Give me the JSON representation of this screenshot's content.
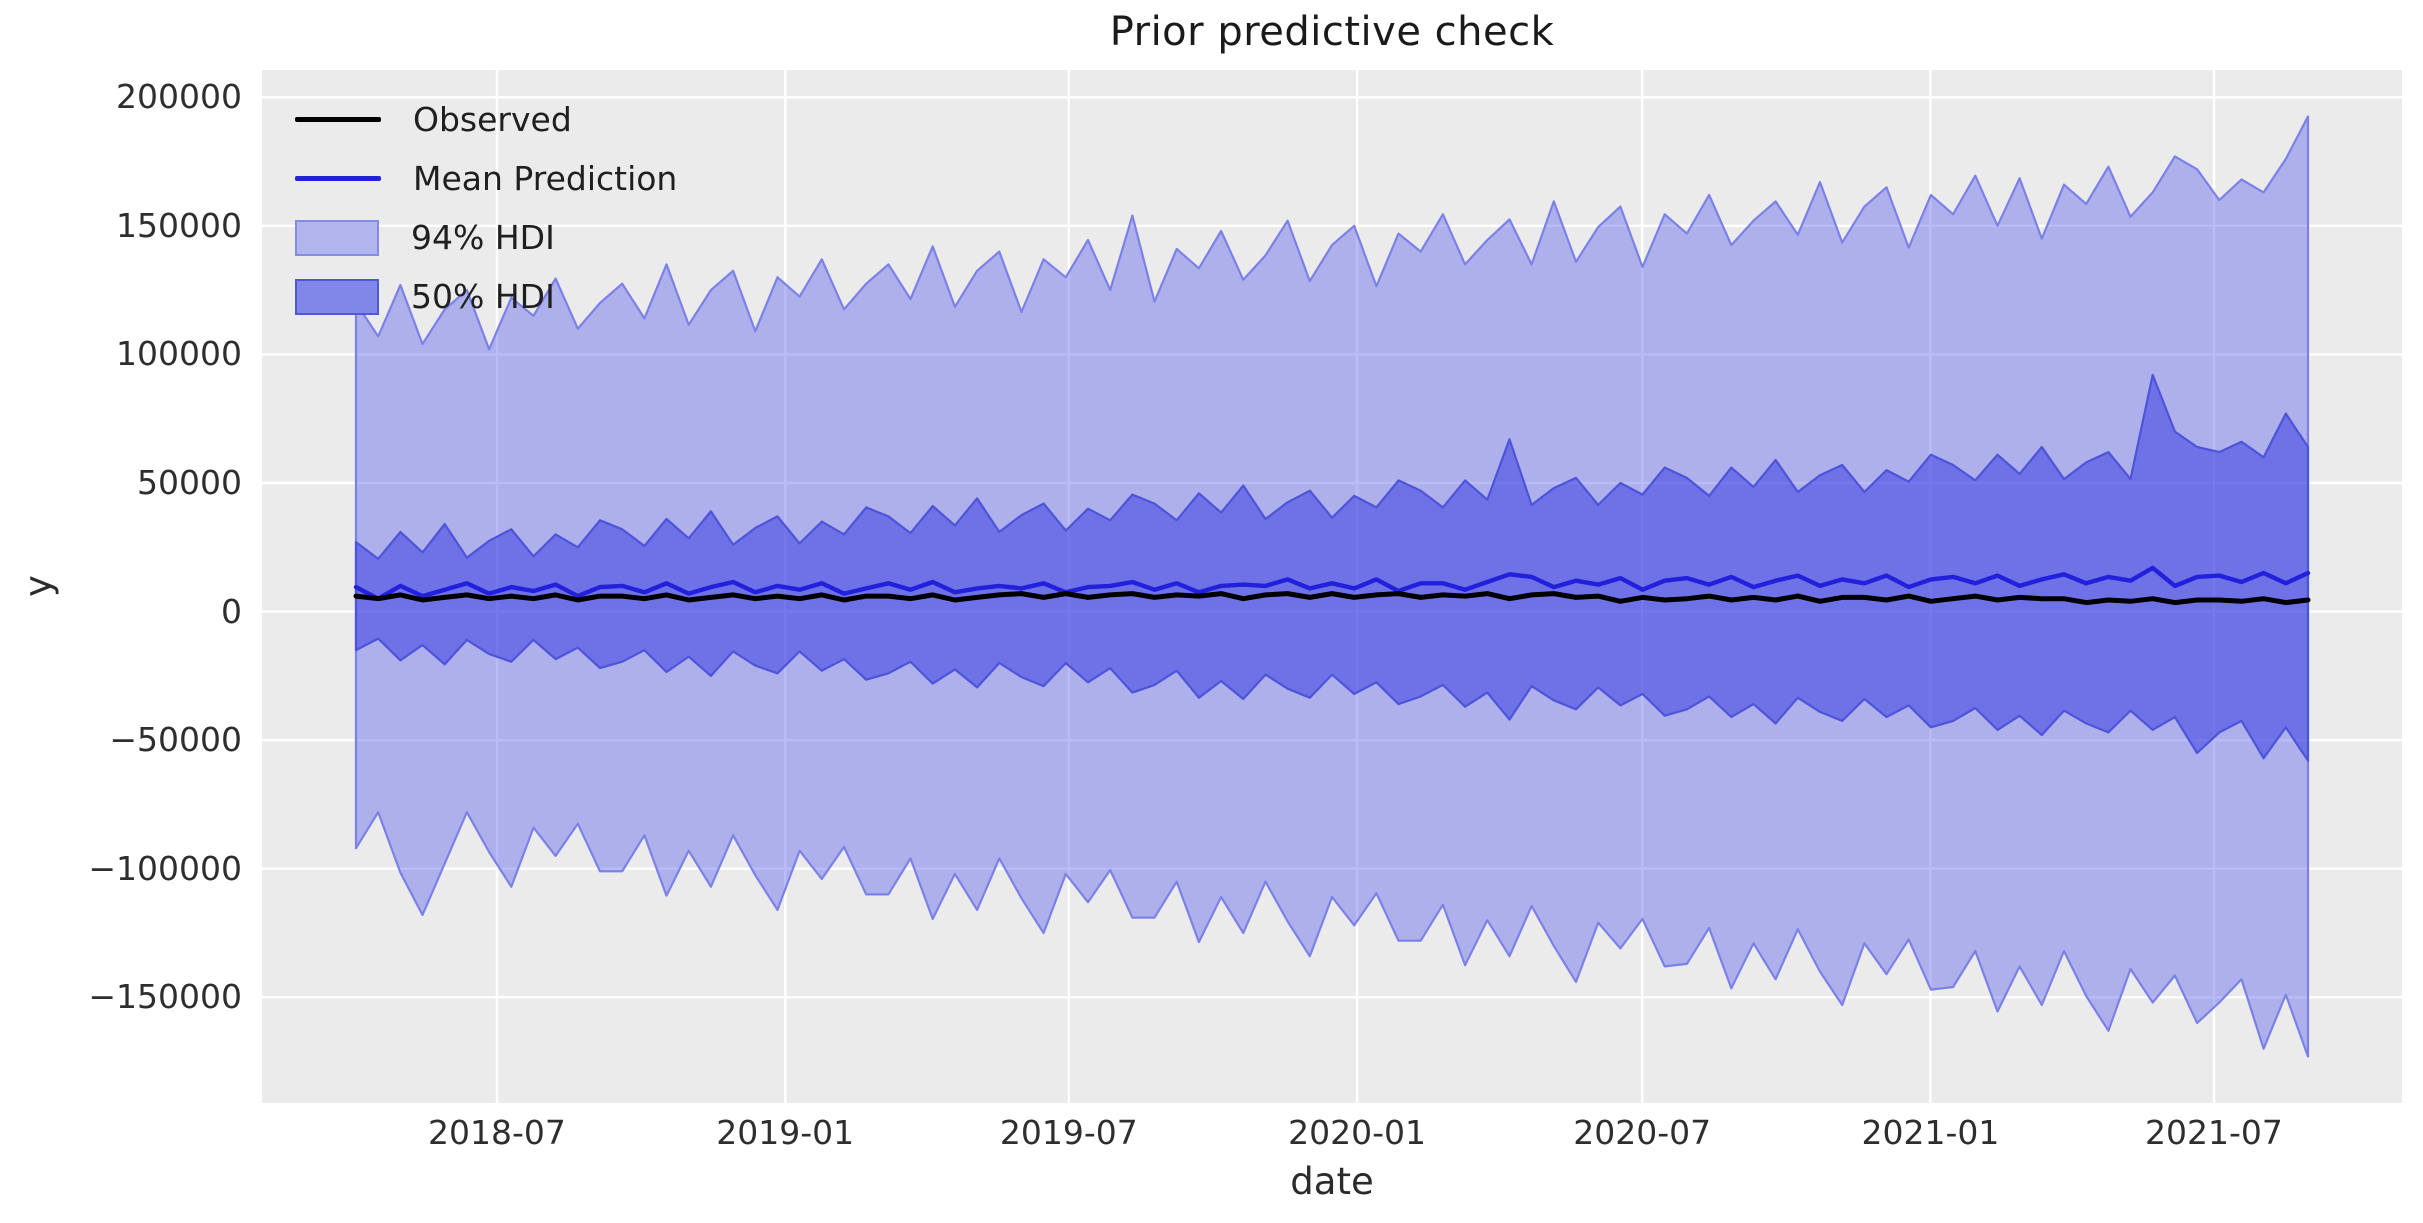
{
  "title": "Prior predictive check",
  "colors": {
    "axes_background": "#ebebeb",
    "grid": "#ffffff",
    "observed_line": "#000000",
    "mean_line": "#2320dc",
    "hdi94_fill": "rgba(90,95,235,0.42)",
    "hdi94_edge": "#7b81e7",
    "hdi50_fill": "rgba(45,52,225,0.50)",
    "hdi50_edge": "#4d54da",
    "legend_patch94_fill": "#b2b5ed",
    "legend_patch94_edge": "#838ae8",
    "legend_patch50_fill": "#8187e9",
    "legend_patch50_edge": "#5058da"
  },
  "legend": {
    "observed_label": "Observed",
    "mean_label": "Mean Prediction",
    "hdi94_label": "94% HDI",
    "hdi50_label": "50% HDI"
  },
  "chart_data": {
    "type": "line",
    "title": "Prior predictive check",
    "xlabel": "date",
    "ylabel": "y",
    "grid": true,
    "legend_position": "upper left",
    "x_axis": {
      "lim": [
        "2018-02-01",
        "2021-10-29"
      ],
      "ticks": [
        {
          "label": "2018-07",
          "date": "2018-07-01"
        },
        {
          "label": "2019-01",
          "date": "2019-01-01"
        },
        {
          "label": "2019-07",
          "date": "2019-07-01"
        },
        {
          "label": "2020-01",
          "date": "2020-01-01"
        },
        {
          "label": "2020-07",
          "date": "2020-07-01"
        },
        {
          "label": "2021-01",
          "date": "2021-01-01"
        },
        {
          "label": "2021-07",
          "date": "2021-07-01"
        }
      ]
    },
    "y_axis": {
      "lim": [
        -191100,
        210600
      ],
      "ticks": [
        {
          "label": "200000",
          "value": 200000
        },
        {
          "label": "150000",
          "value": 150000
        },
        {
          "label": "100000",
          "value": 100000
        },
        {
          "label": "50000",
          "value": 50000
        },
        {
          "label": "0",
          "value": 0
        },
        {
          "label": "−50000",
          "value": -50000
        },
        {
          "label": "−100000",
          "value": -100000
        },
        {
          "label": "−150000",
          "value": -150000
        }
      ]
    },
    "data": {
      "start": "2018-04-02",
      "end": "2021-08-30",
      "n": 89,
      "unit": 1000,
      "hdi94_upper": [
        120,
        107,
        127,
        104,
        117.5,
        125,
        102,
        122,
        115,
        129.5,
        110,
        120,
        127.5,
        114,
        135,
        111.5,
        125,
        132.5,
        109,
        130,
        122.5,
        137,
        117.5,
        127.5,
        135,
        121.5,
        142,
        118.5,
        132.5,
        140,
        116.5,
        137,
        130,
        144.5,
        125,
        154,
        120.5,
        141,
        133.5,
        148,
        129,
        138.5,
        152,
        128.5,
        142.5,
        150,
        126.5,
        147,
        140,
        154.5,
        135,
        144.5,
        152.5,
        135,
        159.5,
        136,
        149.5,
        157.5,
        134,
        154.5,
        147,
        162,
        142.5,
        152,
        159.5,
        146.5,
        167,
        143.5,
        157.5,
        165,
        141.5,
        162,
        154.5,
        169.5,
        150,
        168.5,
        145,
        166,
        158.5,
        173,
        153.5,
        163,
        177,
        172,
        160,
        168,
        163,
        176,
        192.5
      ],
      "hdi94_lower": [
        -92,
        -78,
        -101.5,
        -118,
        -98,
        -78,
        -93.5,
        -107,
        -84,
        -95,
        -82.5,
        -101,
        -101,
        -87,
        -110.5,
        -93,
        -107,
        -87,
        -102.5,
        -116,
        -93,
        -104,
        -91.5,
        -110,
        -110,
        -96,
        -119.5,
        -102,
        -116,
        -96,
        -111.5,
        -125,
        -102,
        -113,
        -100.5,
        -119,
        -119,
        -105,
        -128.5,
        -111,
        -125,
        -105,
        -120.5,
        -134,
        -111,
        -122,
        -109.5,
        -128,
        -128,
        -114,
        -137.5,
        -120,
        -134,
        -114.5,
        -130,
        -144,
        -121,
        -131,
        -119.5,
        -138,
        -137,
        -123,
        -146.5,
        -129,
        -143,
        -123.5,
        -140,
        -153,
        -129,
        -141,
        -127.5,
        -147,
        -146,
        -132,
        -155.5,
        -138,
        -153,
        -132,
        -149.5,
        -163,
        -139,
        -152,
        -141.5,
        -160,
        -152,
        -143,
        -170,
        -149,
        -173
      ],
      "hdi50_upper": [
        27,
        20.5,
        31,
        23,
        34,
        21,
        27.5,
        32,
        21.5,
        30,
        25,
        35.5,
        32,
        25.5,
        36,
        28.5,
        39,
        26,
        32.5,
        37,
        26.5,
        35,
        30,
        40.5,
        37,
        30.5,
        41,
        33.5,
        44,
        31,
        37.5,
        42,
        31.5,
        40,
        35.5,
        45.5,
        42,
        35.5,
        46,
        38.5,
        49,
        36,
        42.5,
        47,
        36.5,
        45,
        40.5,
        51,
        47,
        40.5,
        51,
        43.5,
        67,
        41.5,
        48,
        52,
        41.5,
        50,
        45.5,
        56,
        52,
        45,
        56,
        48.5,
        59,
        46.5,
        53,
        57,
        46.5,
        55,
        50.5,
        61,
        57,
        51,
        61,
        53.5,
        64,
        51.5,
        58,
        62,
        51.5,
        92,
        70,
        64,
        62,
        66,
        60,
        77,
        64
      ],
      "hdi50_lower": [
        -15,
        -10.5,
        -19,
        -13,
        -20.5,
        -11,
        -16.5,
        -19.5,
        -11,
        -18.5,
        -14,
        -22,
        -19.5,
        -15,
        -23.5,
        -17.5,
        -25,
        -15.5,
        -21,
        -24,
        -15.5,
        -23,
        -18.5,
        -26.5,
        -24,
        -19.5,
        -28,
        -22.5,
        -29.5,
        -20,
        -25.5,
        -29,
        -20,
        -27.5,
        -22,
        -31.5,
        -28.5,
        -23,
        -33.5,
        -27,
        -34,
        -24.5,
        -30,
        -33.5,
        -24.5,
        -32,
        -27.5,
        -36,
        -33,
        -28.5,
        -37,
        -31.5,
        -42,
        -29,
        -34.5,
        -38,
        -29.5,
        -36.5,
        -32,
        -40.5,
        -38,
        -33,
        -41,
        -36,
        -43.5,
        -33.5,
        -39,
        -42.5,
        -34,
        -41,
        -36.5,
        -45,
        -42.5,
        -37.5,
        -46,
        -40.5,
        -48,
        -38.5,
        -43.5,
        -47,
        -38.5,
        -46,
        -41,
        -55,
        -47,
        -42.5,
        -57,
        -45,
        -58
      ],
      "mean": [
        9.5,
        5,
        10,
        6,
        8.5,
        11,
        7,
        9.5,
        8,
        10.5,
        6,
        9.5,
        10,
        7.5,
        11,
        7,
        9.5,
        11.5,
        7.5,
        10,
        8.5,
        11,
        7,
        9,
        11,
        8.5,
        11.5,
        7.5,
        9,
        10,
        9,
        11,
        7.5,
        9.5,
        10,
        11.5,
        8.5,
        11,
        7.5,
        10,
        10.5,
        10,
        12.5,
        9,
        11,
        9,
        12.5,
        8,
        11,
        11,
        8.5,
        11.5,
        14.5,
        13.5,
        9.5,
        12,
        10.5,
        13,
        8.5,
        12,
        13,
        10.5,
        13.5,
        9.5,
        12,
        14,
        10,
        12.5,
        11,
        14,
        9.5,
        12.5,
        13.5,
        11,
        14,
        10,
        12.5,
        14.5,
        11,
        13.5,
        12,
        17,
        10,
        13.5,
        14,
        11.5,
        15,
        11,
        15
      ],
      "observed": [
        6,
        5,
        6.5,
        4.5,
        5.5,
        6.5,
        5,
        6,
        5,
        6.5,
        4.5,
        6,
        6,
        5,
        6.5,
        4.5,
        5.5,
        6.5,
        5,
        6,
        5,
        6.5,
        4.5,
        6,
        6,
        5,
        6.5,
        4.5,
        5.5,
        6.5,
        7,
        5.5,
        7,
        5.5,
        6.5,
        7,
        5.5,
        6.5,
        6,
        7,
        5,
        6.5,
        7,
        5.5,
        7,
        5.5,
        6.5,
        7,
        5.5,
        6.5,
        6,
        7,
        5,
        6.5,
        7,
        5.5,
        6,
        4,
        5.5,
        4.5,
        5,
        6,
        4.5,
        5.5,
        4.5,
        6,
        4,
        5.5,
        5.5,
        4.5,
        6,
        4,
        5,
        6,
        4.5,
        5.5,
        5,
        5,
        3.5,
        4.5,
        4,
        5,
        3.5,
        4.5,
        4.5,
        4,
        5,
        3.5,
        4.5
      ]
    }
  }
}
